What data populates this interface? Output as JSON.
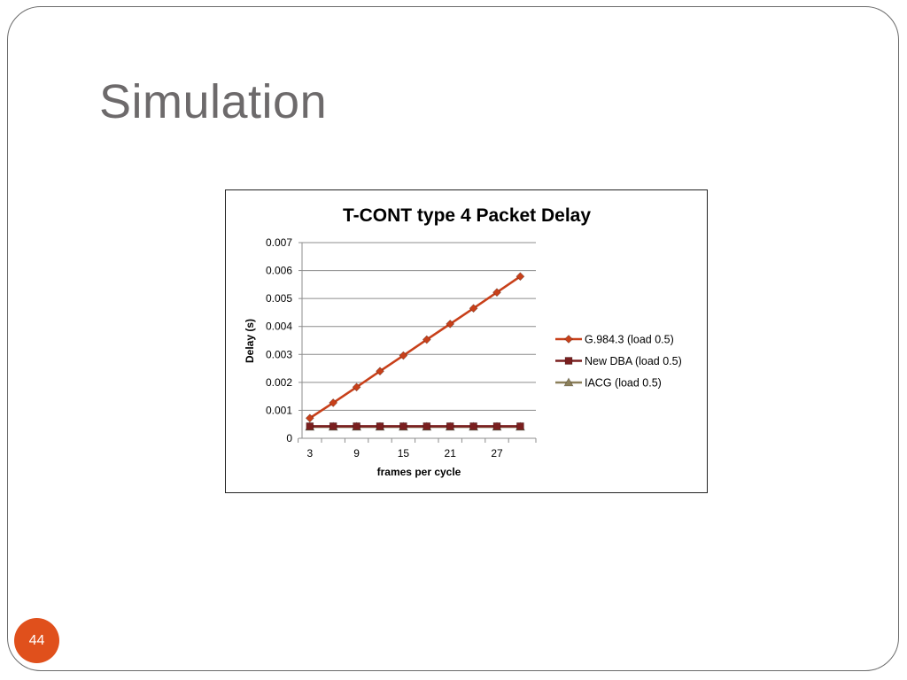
{
  "slide": {
    "title": "Simulation",
    "page_number": "44"
  },
  "colors": {
    "accent": "#e0501c",
    "series_g984": "#c8401a",
    "series_newdba": "#7a1f1f",
    "series_iacg": "#8b7f5a"
  },
  "chart_data": {
    "type": "line",
    "title": "T-CONT type 4 Packet Delay",
    "xlabel": "frames per cycle",
    "ylabel": "Delay (s)",
    "x": [
      3,
      6,
      9,
      12,
      15,
      18,
      21,
      24,
      27,
      30
    ],
    "x_tick_labels": [
      "3",
      "9",
      "15",
      "21",
      "27"
    ],
    "x_tick_values": [
      3,
      9,
      15,
      21,
      27
    ],
    "ylim": [
      0,
      0.007
    ],
    "y_ticks": [
      0,
      0.001,
      0.002,
      0.003,
      0.004,
      0.005,
      0.006,
      0.007
    ],
    "y_tick_labels": [
      "0",
      "0.001",
      "0.002",
      "0.003",
      "0.004",
      "0.005",
      "0.006",
      "0.007"
    ],
    "grid": true,
    "legend_position": "right",
    "series": [
      {
        "name": "G.984.3 (load 0.5)",
        "marker": "diamond",
        "color": "#c8401a",
        "values": [
          0.00072,
          0.00127,
          0.00183,
          0.0024,
          0.00296,
          0.00353,
          0.00409,
          0.00465,
          0.00522,
          0.00579
        ]
      },
      {
        "name": "New DBA (load 0.5)",
        "marker": "square",
        "color": "#7a1f1f",
        "values": [
          0.00043,
          0.00043,
          0.00043,
          0.00043,
          0.00043,
          0.00043,
          0.00043,
          0.00043,
          0.00043,
          0.00043
        ]
      },
      {
        "name": "IACG (load 0.5)",
        "marker": "triangle",
        "color": "#8b7f5a",
        "values": [
          0.00041,
          0.00041,
          0.00041,
          0.00041,
          0.00041,
          0.00041,
          0.00041,
          0.00041,
          0.00041,
          0.00041
        ]
      }
    ]
  }
}
